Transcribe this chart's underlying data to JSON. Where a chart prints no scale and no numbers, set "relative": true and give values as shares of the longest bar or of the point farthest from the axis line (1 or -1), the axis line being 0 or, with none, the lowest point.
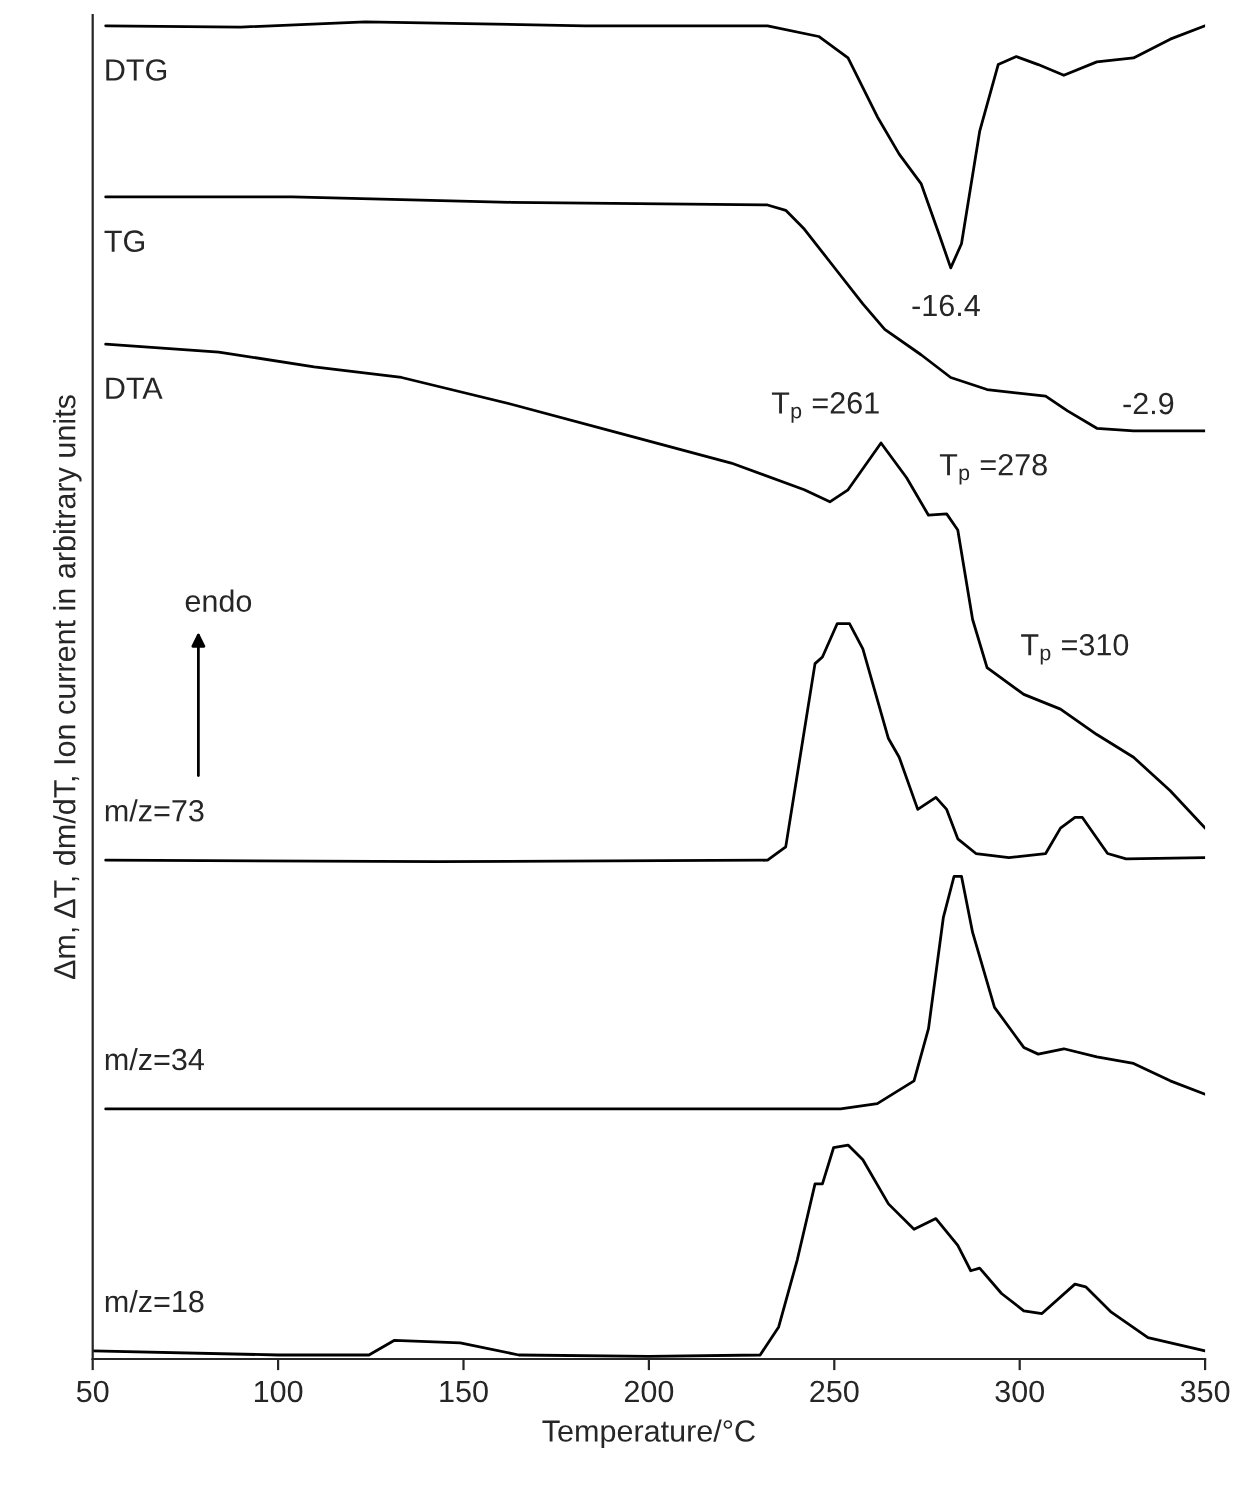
{
  "chart_data": {
    "type": "line",
    "relative": true,
    "xlabel": "Temperature/°C",
    "ylabel": "Δm, ΔT, dm/dT, Ion current in arbitrary units",
    "xlim": [
      50,
      350
    ],
    "xticks": [
      50,
      100,
      150,
      200,
      250,
      300,
      350
    ],
    "grid": false,
    "legend": false,
    "marker": "none",
    "line_style": "solid",
    "series": [
      {
        "name": "DTG",
        "color": "#000000",
        "x": [
          53.5,
          89.9,
          123.5,
          182.7,
          232,
          245.8,
          253.7,
          261.6,
          267.5,
          273.4,
          278.4,
          281.4,
          284.3,
          289.2,
          294.2,
          299.1,
          305,
          311.9,
          320.8,
          330.7,
          340.6,
          350
        ],
        "values": [
          0.997,
          0.996,
          1.0,
          0.997,
          0.997,
          0.989,
          0.973,
          0.929,
          0.901,
          0.879,
          0.84,
          0.816,
          0.834,
          0.918,
          0.968,
          0.974,
          0.968,
          0.96,
          0.97,
          0.973,
          0.987,
          0.997
        ]
      },
      {
        "name": "TG",
        "color": "#000000",
        "x": [
          53.5,
          103.8,
          162.9,
          232,
          236.9,
          241.9,
          249.8,
          257.7,
          263.6,
          273.4,
          281.4,
          291.2,
          307,
          312.9,
          320.8,
          330.7,
          350
        ],
        "values": [
          0.869,
          0.869,
          0.865,
          0.863,
          0.859,
          0.845,
          0.817,
          0.789,
          0.77,
          0.751,
          0.734,
          0.725,
          0.72,
          0.709,
          0.696,
          0.694,
          0.694
        ]
      },
      {
        "name": "DTA",
        "color": "#000000",
        "x": [
          53.5,
          84,
          109.7,
          133.3,
          162.9,
          192.5,
          222.2,
          241.9,
          248.8,
          253.7,
          262.6,
          269.5,
          275.4,
          280.3,
          283.3,
          287.3,
          291.2,
          301.1,
          311,
          320.8,
          330.7,
          340.6,
          350
        ],
        "values": [
          0.759,
          0.753,
          0.742,
          0.734,
          0.714,
          0.692,
          0.67,
          0.65,
          0.641,
          0.65,
          0.685,
          0.659,
          0.631,
          0.632,
          0.62,
          0.553,
          0.517,
          0.497,
          0.486,
          0.467,
          0.45,
          0.425,
          0.397
        ]
      },
      {
        "name": "m/z=73",
        "color": "#000000",
        "x": [
          53.5,
          143.2,
          232,
          236.9,
          244.8,
          246.8,
          250.8,
          254.1,
          257.7,
          264.6,
          267.5,
          272.5,
          277.4,
          280.3,
          283.3,
          288.2,
          297.1,
          307,
          311,
          314.9,
          316.9,
          323.7,
          328.7,
          350
        ],
        "values": [
          0.373,
          0.372,
          0.373,
          0.383,
          0.52,
          0.525,
          0.55,
          0.55,
          0.531,
          0.464,
          0.45,
          0.411,
          0.42,
          0.411,
          0.389,
          0.378,
          0.375,
          0.378,
          0.397,
          0.405,
          0.405,
          0.378,
          0.374,
          0.375
        ]
      },
      {
        "name": "m/z=34",
        "color": "#000000",
        "x": [
          53.5,
          251.7,
          261.6,
          271.5,
          275.4,
          279.4,
          282.3,
          284.3,
          287.3,
          293.2,
          301.1,
          305,
          311.9,
          320.8,
          330.7,
          340.6,
          350
        ],
        "values": [
          0.187,
          0.187,
          0.191,
          0.208,
          0.247,
          0.33,
          0.361,
          0.361,
          0.319,
          0.263,
          0.233,
          0.228,
          0.232,
          0.226,
          0.221,
          0.208,
          0.198
        ]
      },
      {
        "name": "m/z=18",
        "color": "#000000",
        "x": [
          50,
          100,
          124.5,
          131.4,
          149.1,
          164.9,
          200,
          230,
          235,
          240,
          244.8,
          246.8,
          249.8,
          253.7,
          257.7,
          264.6,
          271.5,
          277.4,
          283.3,
          286.8,
          289.2,
          295.1,
          301.1,
          306,
          314.9,
          317.8,
          324.7,
          334.6,
          350
        ],
        "values": [
          0.006,
          0.003,
          0.003,
          0.014,
          0.012,
          0.003,
          0.002,
          0.003,
          0.024,
          0.074,
          0.131,
          0.131,
          0.158,
          0.16,
          0.149,
          0.116,
          0.097,
          0.105,
          0.085,
          0.066,
          0.068,
          0.049,
          0.036,
          0.034,
          0.056,
          0.054,
          0.035,
          0.016,
          0.006
        ]
      }
    ],
    "annotations": [
      "-16.4",
      "-2.9",
      "T$_{p}$ =261",
      "T$_{p}$ =278",
      "T$_{p}$ =310",
      "endo"
    ]
  }
}
